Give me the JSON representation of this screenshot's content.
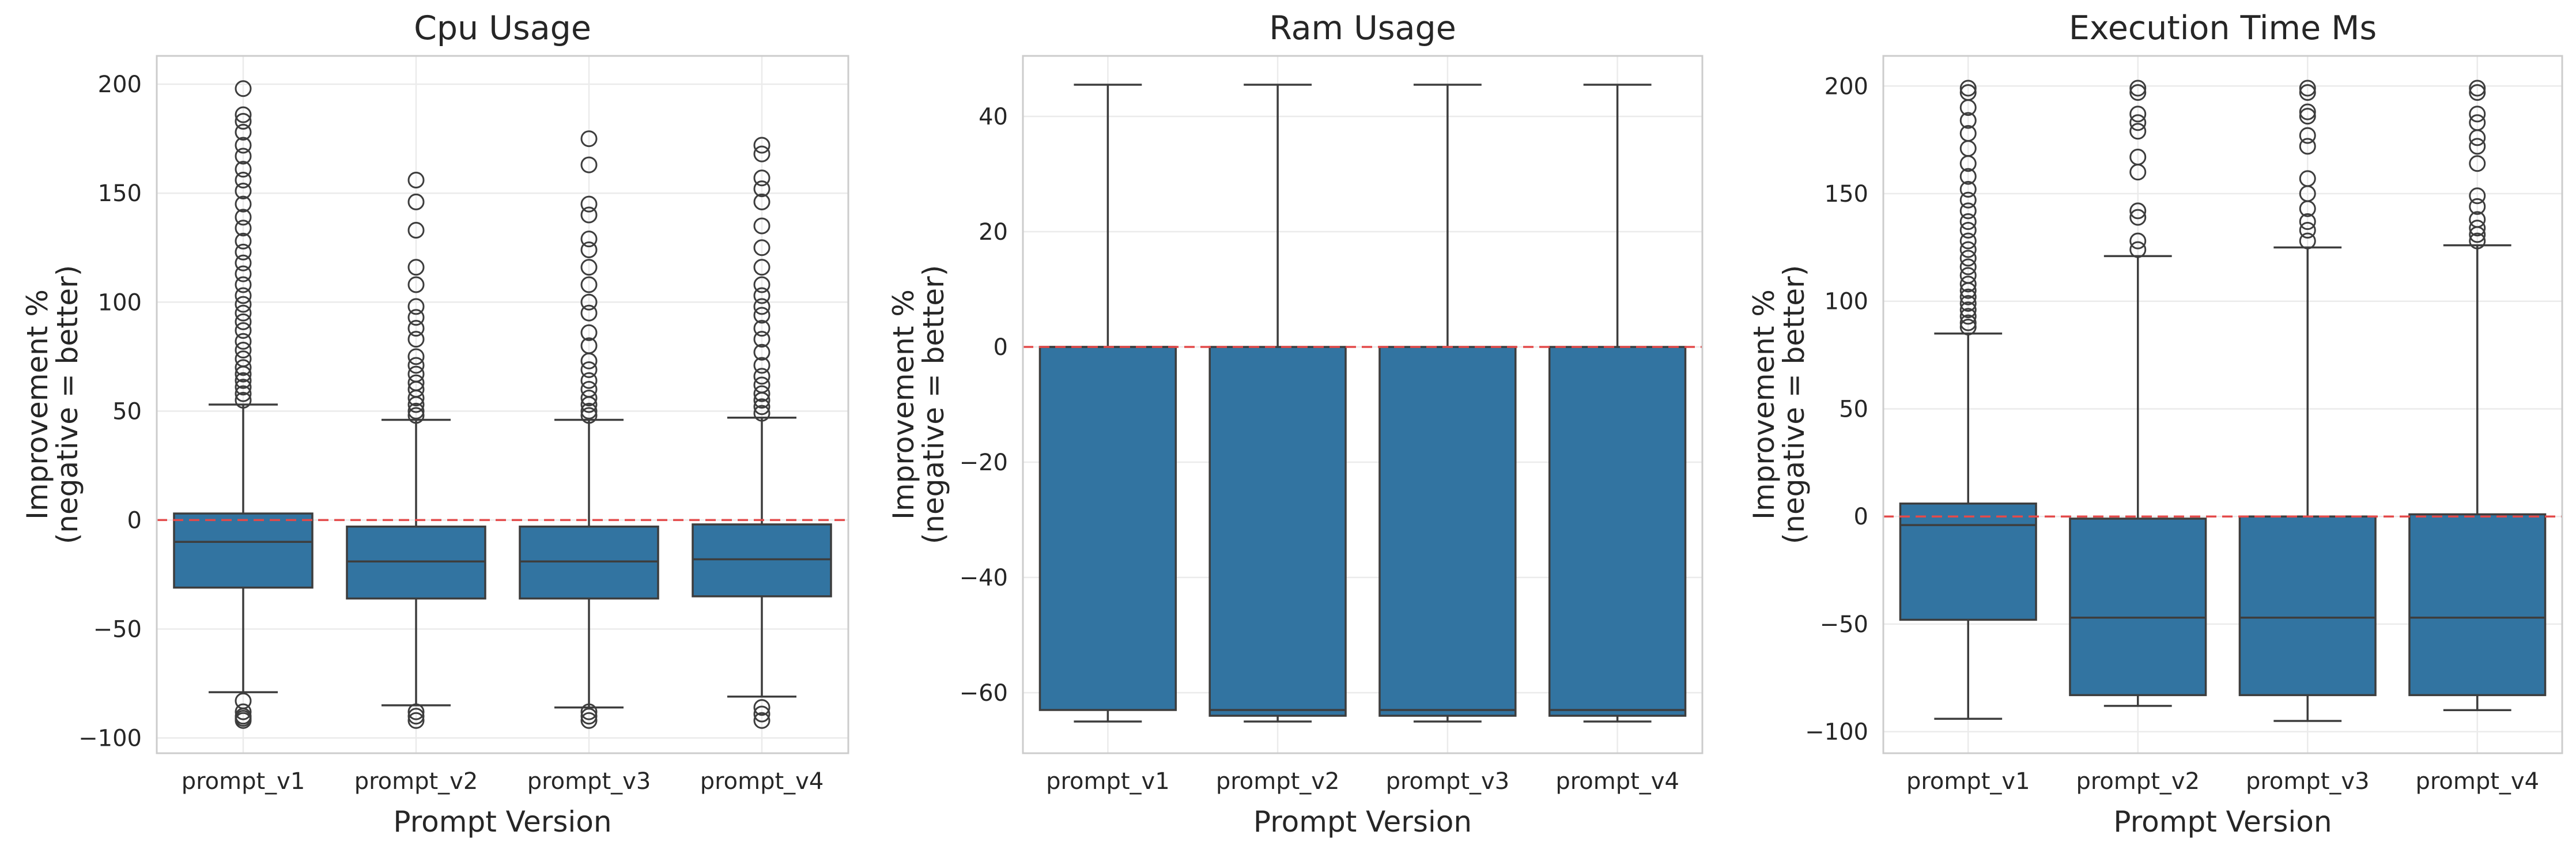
{
  "colors": {
    "box_fill": "#3274a1",
    "box_edge": "#3d3d3d",
    "reference_line": "#e34a4a",
    "grid": "#ebebeb",
    "frame": "#cccccc"
  },
  "chart_data": [
    {
      "type": "box",
      "title": "Cpu Usage",
      "xlabel": "Prompt Version",
      "ylabel": "Improvement %\n(negative = better)",
      "categories": [
        "prompt_v1",
        "prompt_v2",
        "prompt_v3",
        "prompt_v4"
      ],
      "ylim": [
        -107,
        213
      ],
      "yticks": [
        -100,
        -50,
        0,
        50,
        100,
        150,
        200
      ],
      "reference_line_y": 0,
      "grid": true,
      "boxes": [
        {
          "category": "prompt_v1",
          "whisker_low": -79,
          "q1": -31,
          "median": -10,
          "q3": 3,
          "whisker_high": 53,
          "outliers": [
            -83,
            -88,
            -90,
            -91,
            -92,
            55,
            58,
            61,
            64,
            67,
            70,
            74,
            78,
            82,
            87,
            91,
            95,
            99,
            103,
            108,
            113,
            118,
            123,
            128,
            134,
            139,
            145,
            151,
            156,
            161,
            167,
            172,
            178,
            183,
            186,
            198
          ]
        },
        {
          "category": "prompt_v2",
          "whisker_low": -85,
          "q1": -36,
          "median": -19,
          "q3": -3,
          "whisker_high": 46,
          "outliers": [
            -88,
            -90,
            -92,
            48,
            50,
            53,
            56,
            60,
            63,
            67,
            71,
            75,
            83,
            88,
            93,
            98,
            108,
            116,
            133,
            146,
            156
          ]
        },
        {
          "category": "prompt_v3",
          "whisker_low": -86,
          "q1": -36,
          "median": -19,
          "q3": -3,
          "whisker_high": 46,
          "outliers": [
            -88,
            -90,
            -92,
            48,
            50,
            53,
            56,
            60,
            64,
            69,
            73,
            80,
            86,
            95,
            100,
            108,
            116,
            124,
            129,
            140,
            145,
            163,
            175
          ]
        },
        {
          "category": "prompt_v4",
          "whisker_low": -81,
          "q1": -35,
          "median": -18,
          "q3": -2,
          "whisker_high": 47,
          "outliers": [
            -86,
            -89,
            -92,
            49,
            52,
            55,
            58,
            62,
            66,
            71,
            77,
            83,
            88,
            94,
            98,
            103,
            108,
            116,
            125,
            135,
            146,
            152,
            157,
            168,
            172
          ]
        }
      ]
    },
    {
      "type": "box",
      "title": "Ram Usage",
      "xlabel": "Prompt Version",
      "ylabel": "Improvement %\n(negative = better)",
      "categories": [
        "prompt_v1",
        "prompt_v2",
        "prompt_v3",
        "prompt_v4"
      ],
      "ylim": [
        -70.5,
        50.5
      ],
      "yticks": [
        -60,
        -40,
        -20,
        0,
        20,
        40
      ],
      "reference_line_y": 0,
      "grid": true,
      "boxes": [
        {
          "category": "prompt_v1",
          "whisker_low": -65,
          "q1": -63,
          "median": 0,
          "q3": 0,
          "whisker_high": 45.5,
          "outliers": []
        },
        {
          "category": "prompt_v2",
          "whisker_low": -65,
          "q1": -64,
          "median": -63,
          "q3": 0,
          "whisker_high": 45.5,
          "outliers": []
        },
        {
          "category": "prompt_v3",
          "whisker_low": -65,
          "q1": -64,
          "median": -63,
          "q3": 0,
          "whisker_high": 45.5,
          "outliers": []
        },
        {
          "category": "prompt_v4",
          "whisker_low": -65,
          "q1": -64,
          "median": -63,
          "q3": 0,
          "whisker_high": 45.5,
          "outliers": []
        }
      ]
    },
    {
      "type": "box",
      "title": "Execution Time Ms",
      "xlabel": "Prompt Version",
      "ylabel": "Improvement %\n(negative = better)",
      "categories": [
        "prompt_v1",
        "prompt_v2",
        "prompt_v3",
        "prompt_v4"
      ],
      "ylim": [
        -110,
        214
      ],
      "yticks": [
        -100,
        -50,
        0,
        50,
        100,
        150,
        200
      ],
      "reference_line_y": 0,
      "grid": true,
      "boxes": [
        {
          "category": "prompt_v1",
          "whisker_low": -94,
          "q1": -48,
          "median": -4,
          "q3": 6,
          "whisker_high": 85,
          "outliers": [
            88,
            90,
            93,
            96,
            99,
            102,
            105,
            108,
            112,
            116,
            120,
            124,
            128,
            133,
            137,
            142,
            147,
            152,
            158,
            164,
            171,
            178,
            184,
            190,
            197,
            199
          ]
        },
        {
          "category": "prompt_v2",
          "whisker_low": -88,
          "q1": -83,
          "median": -47,
          "q3": -1,
          "whisker_high": 121,
          "outliers": [
            124,
            128,
            139,
            142,
            160,
            167,
            179,
            183,
            187,
            197,
            199
          ]
        },
        {
          "category": "prompt_v3",
          "whisker_low": -95,
          "q1": -83,
          "median": -47,
          "q3": 0,
          "whisker_high": 125,
          "outliers": [
            128,
            133,
            137,
            143,
            150,
            157,
            172,
            177,
            186,
            188,
            197,
            199
          ]
        },
        {
          "category": "prompt_v4",
          "whisker_low": -90,
          "q1": -83,
          "median": -47,
          "q3": 1,
          "whisker_high": 126,
          "outliers": [
            128,
            131,
            134,
            138,
            144,
            149,
            164,
            172,
            176,
            183,
            187,
            197,
            199
          ]
        }
      ]
    }
  ]
}
